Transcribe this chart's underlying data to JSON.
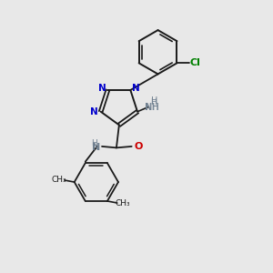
{
  "bg_color": "#e8e8e8",
  "bond_color": "#1a1a1a",
  "blue_color": "#0000cc",
  "green_color": "#008000",
  "red_color": "#cc0000",
  "gray_color": "#708090",
  "figsize": [
    3.0,
    3.0
  ],
  "dpi": 100,
  "xlim": [
    0,
    10
  ],
  "ylim": [
    0,
    10
  ]
}
